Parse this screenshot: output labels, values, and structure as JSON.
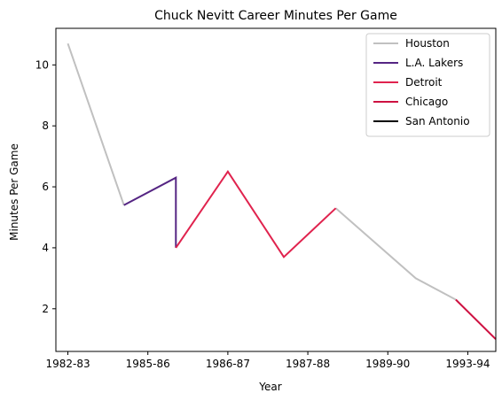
{
  "chart_data": {
    "type": "line",
    "title": "Chuck Nevitt Career Minutes Per Game",
    "xlabel": "Year",
    "ylabel": "Minutes Per Game",
    "x_ticks": [
      "1982-83",
      "1985-86",
      "1986-87",
      "1987-88",
      "1989-90",
      "1993-94"
    ],
    "x_tick_positions": [
      0,
      1,
      2,
      3,
      4,
      5
    ],
    "xlim": [
      -0.15,
      5.35
    ],
    "ylim": [
      0.6,
      11.2
    ],
    "y_ticks": [
      2,
      4,
      6,
      8,
      10
    ],
    "legend_position": "top-right",
    "series": [
      {
        "name": "Houston",
        "color": "#c0c0c0",
        "segments": [
          [
            [
              0,
              10.7
            ],
            [
              0.7,
              5.4
            ]
          ],
          [
            [
              3.35,
              5.3
            ],
            [
              4.35,
              3.0
            ],
            [
              4.85,
              2.3
            ]
          ]
        ]
      },
      {
        "name": "L.A. Lakers",
        "color": "#552583",
        "segments": [
          [
            [
              0.7,
              5.4
            ],
            [
              1.35,
              6.3
            ],
            [
              1.35,
              4.0
            ]
          ]
        ]
      },
      {
        "name": "Detroit",
        "color": "#e0234e",
        "segments": [
          [
            [
              1.35,
              4.0
            ],
            [
              2.0,
              6.5
            ],
            [
              2.7,
              3.7
            ],
            [
              3.35,
              5.3
            ]
          ]
        ]
      },
      {
        "name": "Chicago",
        "color": "#ce1141",
        "segments": [
          [
            [
              4.85,
              2.3
            ],
            [
              5.35,
              1.0
            ]
          ]
        ]
      },
      {
        "name": "San Antonio",
        "color": "#000000",
        "segments": []
      }
    ]
  }
}
